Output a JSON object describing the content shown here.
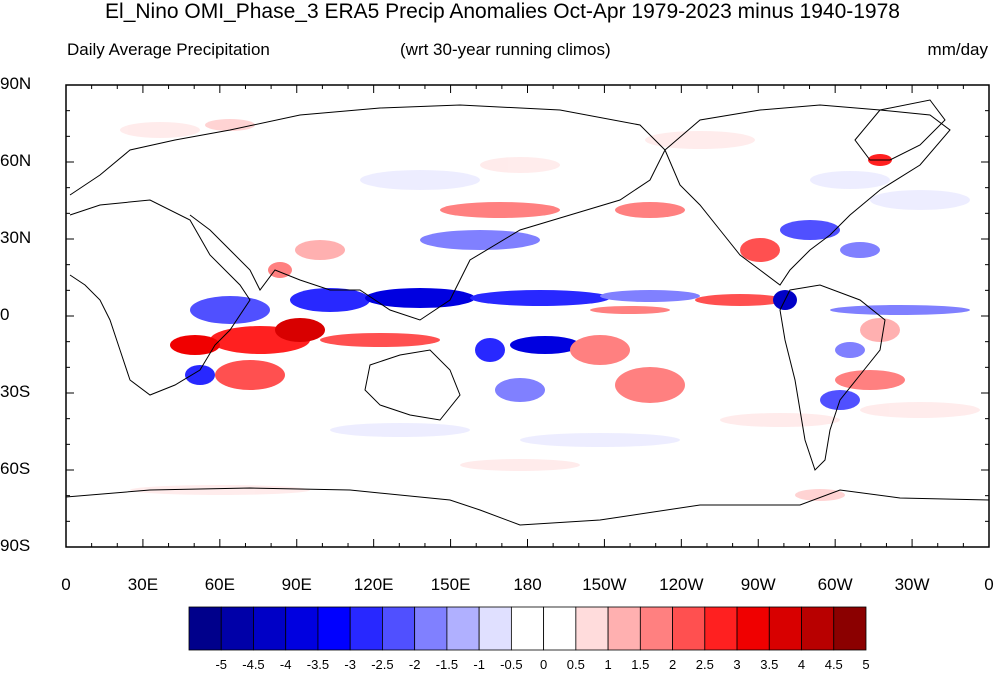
{
  "title": "El_Nino OMI_Phase_3 ERA5 Precip Anomalies Oct-Apr 1979-2023 minus 1940-1978",
  "subtitle_left": "Daily Average Precipitation",
  "subtitle_center": "(wrt 30-year running climos)",
  "subtitle_right": "mm/day",
  "lat_labels": [
    "90N",
    "60N",
    "30N",
    "0",
    "30S",
    "60S",
    "90S"
  ],
  "lon_labels": [
    "0",
    "30E",
    "60E",
    "90E",
    "120E",
    "150E",
    "180",
    "150W",
    "120W",
    "90W",
    "60W",
    "30W",
    "0"
  ],
  "colorbar": {
    "labels": [
      "-5",
      "-4.5",
      "-4",
      "-3.5",
      "-3",
      "-2.5",
      "-2",
      "-1.5",
      "-1",
      "-0.5",
      "0",
      "0.5",
      "1",
      "1.5",
      "2",
      "2.5",
      "3",
      "3.5",
      "4",
      "4.5",
      "5"
    ],
    "colors": [
      "#00008b",
      "#0000a8",
      "#0000c6",
      "#0000e0",
      "#0000ff",
      "#2828ff",
      "#5050ff",
      "#8080ff",
      "#b0b0ff",
      "#e0e0ff",
      "#ffffff",
      "#ffffff",
      "#ffdcdc",
      "#ffb0b0",
      "#ff8080",
      "#ff5050",
      "#ff2020",
      "#f00000",
      "#d80000",
      "#b80000",
      "#8b0000"
    ]
  }
}
